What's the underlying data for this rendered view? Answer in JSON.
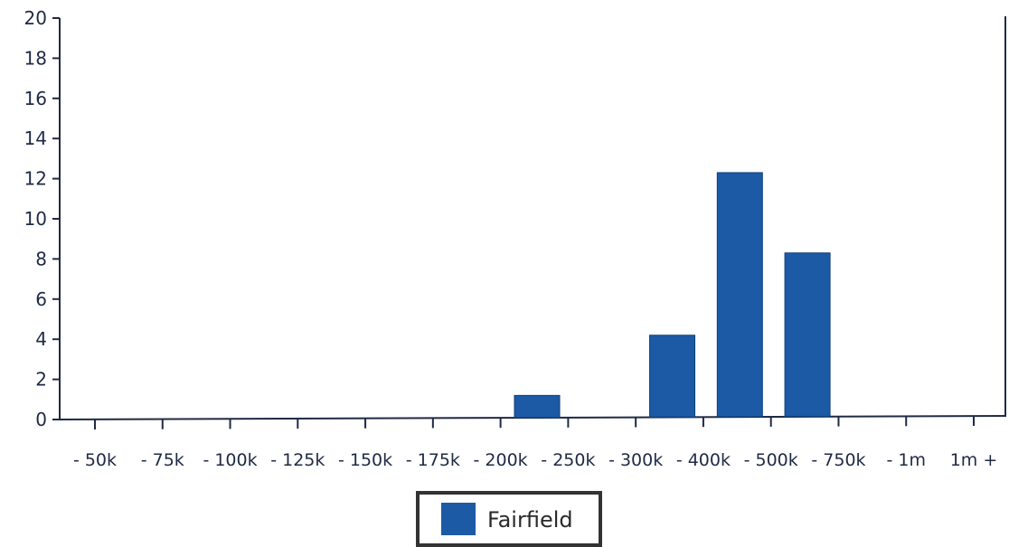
{
  "chart_data": {
    "type": "bar",
    "categories": [
      "- 50k",
      "- 75k",
      "- 100k",
      "- 125k",
      "- 150k",
      "- 175k",
      "- 200k",
      "- 250k",
      "- 300k",
      "- 400k",
      "- 500k",
      "- 750k",
      "- 1m",
      "1m +"
    ],
    "series": [
      {
        "name": "Fairfield",
        "values": [
          0,
          0,
          0,
          0,
          0,
          0,
          0,
          1.2,
          0,
          4.2,
          12.3,
          8.3,
          0,
          0
        ]
      }
    ],
    "title": "",
    "xlabel": "",
    "ylabel": "",
    "ylim": [
      0,
      20
    ],
    "yticks": [
      "0",
      "2",
      "4",
      "6",
      "8",
      "10",
      "12",
      "14",
      "16",
      "18",
      "20"
    ],
    "grid": false,
    "legend_position": "bottom-center",
    "colors": {
      "bar": "#1c5aa6",
      "bar_edge": "#0f3f7a",
      "axis": "#1f2a44",
      "legend_border": "#333333"
    }
  }
}
